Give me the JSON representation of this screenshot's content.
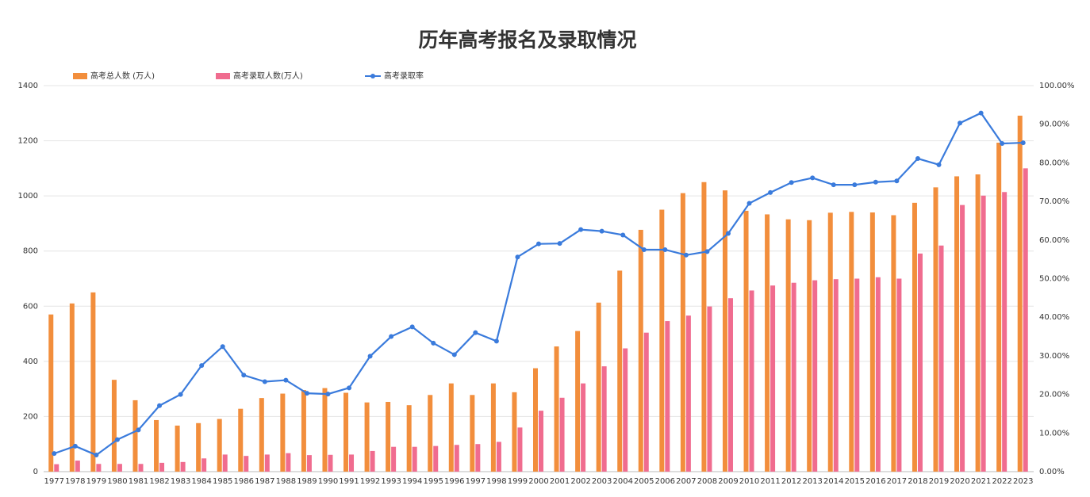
{
  "chart_data": {
    "type": "bar",
    "title": "历年高考报名及录取情况",
    "categories": [
      "1977",
      "1978",
      "1979",
      "1980",
      "1981",
      "1982",
      "1983",
      "1984",
      "1985",
      "1986",
      "1987",
      "1988",
      "1989",
      "1990",
      "1991",
      "1992",
      "1993",
      "1994",
      "1995",
      "1996",
      "1997",
      "1998",
      "1999",
      "2000",
      "2001",
      "2002",
      "2003",
      "2004",
      "2005",
      "2006",
      "2007",
      "2008",
      "2009",
      "2010",
      "2011",
      "2012",
      "2013",
      "2014",
      "2015",
      "2016",
      "2017",
      "2018",
      "2019",
      "2020",
      "2021",
      "2022",
      "2023"
    ],
    "series": [
      {
        "name": "高考总人数 (万人)",
        "type": "bar",
        "color": "#f28e3c",
        "values": [
          570,
          610,
          650,
          333,
          259,
          187,
          167,
          176,
          191,
          228,
          267,
          283,
          296,
          303,
          286,
          251,
          253,
          241,
          278,
          320,
          278,
          320,
          288,
          375,
          454,
          510,
          613,
          729,
          877,
          950,
          1010,
          1050,
          1020,
          946,
          933,
          915,
          912,
          939,
          942,
          940,
          930,
          975,
          1031,
          1071,
          1078,
          1193,
          1291
        ]
      },
      {
        "name": "高考录取人数(万人)",
        "type": "bar",
        "color": "#f06c8f",
        "values": [
          27,
          40,
          28,
          28,
          28,
          32,
          35,
          48,
          62,
          57,
          62,
          67,
          60,
          61,
          62,
          75,
          90,
          90,
          93,
          97,
          100,
          108,
          160,
          221,
          268,
          320,
          382,
          447,
          504,
          546,
          566,
          599,
          629,
          657,
          675,
          685,
          694,
          698,
          700,
          705,
          700,
          791,
          820,
          967,
          1001,
          1014,
          1100
        ]
      },
      {
        "name": "高考录取率",
        "type": "line",
        "axis": "y2",
        "color": "#3a7bdc",
        "values": [
          4.7,
          6.6,
          4.3,
          8.3,
          10.8,
          17.1,
          20,
          27.5,
          32.4,
          25,
          23.3,
          23.7,
          20.3,
          20.1,
          21.7,
          29.9,
          35,
          37.5,
          33.3,
          30.3,
          36,
          33.8,
          55.6,
          59,
          59.1,
          62.7,
          62.3,
          61.3,
          57.5,
          57.5,
          56.1,
          57,
          61.7,
          69.5,
          72.3,
          74.9,
          76.1,
          74.3,
          74.3,
          75,
          75.3,
          81.1,
          79.5,
          90.3,
          92.9,
          85,
          85.2
        ]
      }
    ],
    "ylim": [
      0,
      1400
    ],
    "yticks": [
      0,
      200,
      400,
      600,
      800,
      1000,
      1200,
      1400
    ],
    "y2lim": [
      0,
      100
    ],
    "y2ticks": [
      {
        "value": 0,
        "label": "0.00%"
      },
      {
        "value": 10,
        "label": "10.00%"
      },
      {
        "value": 20,
        "label": "20.00%"
      },
      {
        "value": 30,
        "label": "30.00%"
      },
      {
        "value": 40,
        "label": "40.00%"
      },
      {
        "value": 50,
        "label": "50.00%"
      },
      {
        "value": 60,
        "label": "60.00%"
      },
      {
        "value": 70,
        "label": "70.00%"
      },
      {
        "value": 80,
        "label": "80.00%"
      },
      {
        "value": 90,
        "label": "90.00%"
      },
      {
        "value": 100,
        "label": "100.00%"
      }
    ],
    "grid": true,
    "legend": "top"
  }
}
